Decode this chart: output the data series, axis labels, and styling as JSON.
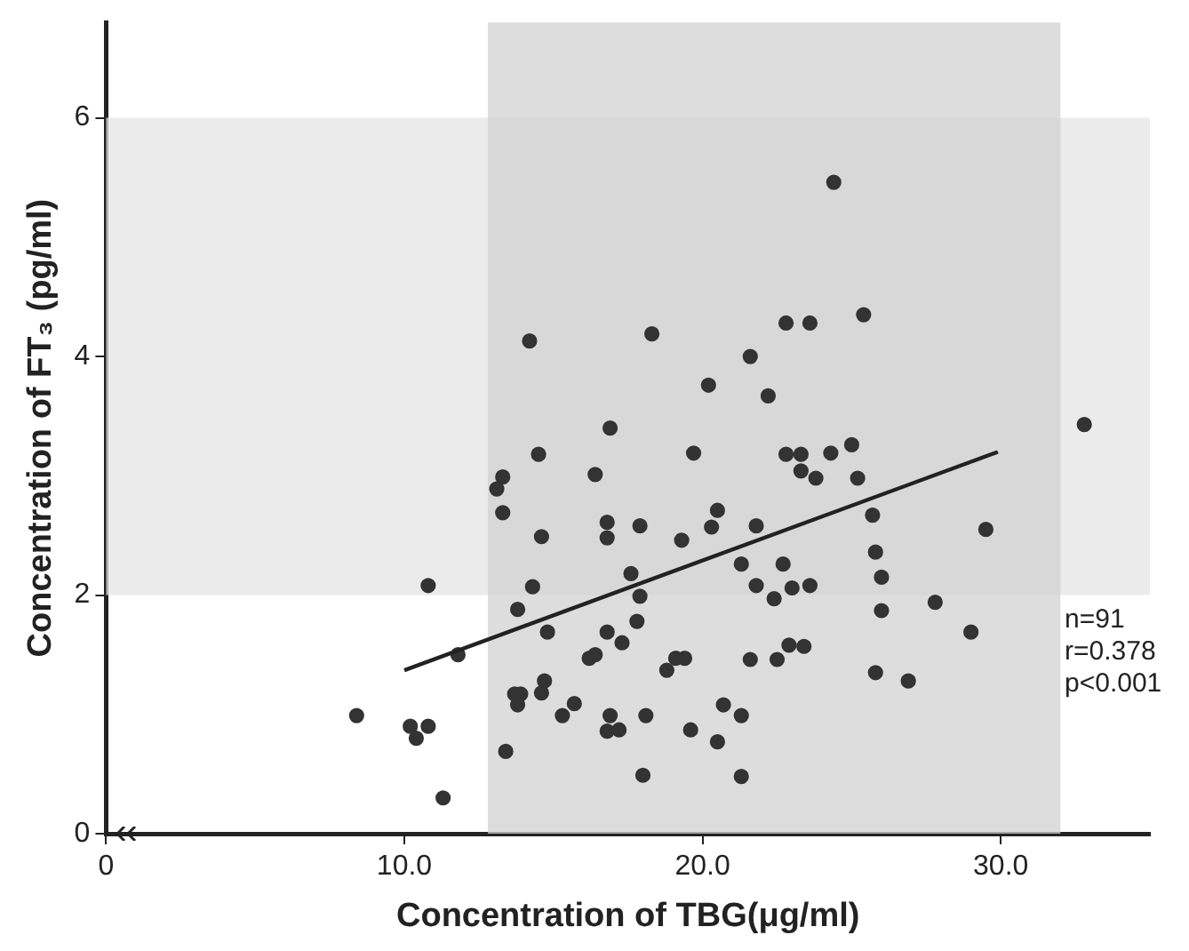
{
  "chart_data": {
    "type": "scatter",
    "xlabel": "Concentration of TBG(μg/ml)",
    "ylabel": "Concentration of FT₃ (pg/ml)",
    "xlim": [
      0,
      35
    ],
    "xticks": [
      0,
      {
        "value": 10,
        "label": "10.0"
      },
      {
        "value": 20,
        "label": "20.0"
      },
      {
        "value": 30,
        "label": "30.0"
      }
    ],
    "ylim": [
      0,
      6.8
    ],
    "yticks": [
      0,
      2,
      4,
      6
    ],
    "grid": false,
    "legend": false,
    "marker": "circle",
    "bands": [
      {
        "axis": "y",
        "from": 2,
        "to": 6,
        "color": "#e4e4e4"
      },
      {
        "axis": "x",
        "from": 12.8,
        "to": 32.0,
        "color": "#d2d2d2"
      }
    ],
    "series": [
      {
        "color": "#333333",
        "x": [
          14.2,
          14.5,
          13.3,
          13.1,
          13.3,
          14.6,
          10.8,
          14.3,
          13.8,
          14.8,
          11.8,
          14.7,
          13.7,
          13.9,
          13.8,
          14.6,
          15.3,
          15.7,
          8.4,
          10.2,
          10.8,
          10.4,
          13.4,
          11.3,
          24.4,
          18.3,
          22.8,
          23.6,
          25.4,
          21.6,
          20.2,
          22.2,
          16.9,
          19.7,
          22.8,
          23.3,
          24.3,
          25.0,
          23.3,
          23.8,
          25.2,
          16.4,
          16.8,
          16.8,
          17.9,
          19.3,
          20.3,
          20.5,
          21.8,
          17.6,
          17.9,
          21.3,
          22.7,
          21.8,
          22.4,
          23.0,
          23.6,
          17.8,
          16.8,
          17.3,
          16.2,
          16.4,
          19.1,
          19.4,
          18.8,
          21.6,
          22.5,
          22.9,
          23.4,
          16.9,
          16.8,
          17.2,
          18.1,
          20.7,
          21.3,
          19.6,
          20.5,
          18.0,
          21.3,
          32.8,
          25.7,
          29.5,
          25.8,
          26.0,
          26.0,
          27.8,
          29.0,
          25.8,
          26.9
        ],
        "values": [
          4.13,
          3.18,
          2.99,
          2.89,
          2.69,
          2.49,
          2.08,
          2.07,
          1.88,
          1.69,
          1.5,
          1.28,
          1.17,
          1.17,
          1.08,
          1.18,
          0.99,
          1.09,
          0.99,
          0.9,
          0.9,
          0.8,
          0.69,
          0.3,
          5.46,
          4.19,
          4.28,
          4.28,
          4.35,
          4.0,
          3.76,
          3.67,
          3.4,
          3.19,
          3.18,
          3.18,
          3.19,
          3.26,
          3.04,
          2.98,
          2.98,
          3.01,
          2.61,
          2.48,
          2.58,
          2.46,
          2.57,
          2.71,
          2.58,
          2.18,
          1.99,
          2.26,
          2.26,
          2.08,
          1.97,
          2.06,
          2.08,
          1.78,
          1.69,
          1.6,
          1.47,
          1.5,
          1.47,
          1.47,
          1.37,
          1.46,
          1.46,
          1.58,
          1.57,
          0.99,
          0.86,
          0.87,
          0.99,
          1.08,
          0.99,
          0.87,
          0.77,
          0.49,
          0.48,
          3.43,
          2.67,
          2.55,
          2.36,
          2.15,
          1.87,
          1.94,
          1.69,
          1.35,
          1.28
        ]
      },
      {
        "type": "line",
        "marker": "none",
        "color": "#222222",
        "x": [
          10.0,
          29.9
        ],
        "values": [
          1.37,
          3.2
        ]
      }
    ],
    "annotations": [
      "n=91",
      "r=0.378",
      "p<0.001"
    ]
  }
}
